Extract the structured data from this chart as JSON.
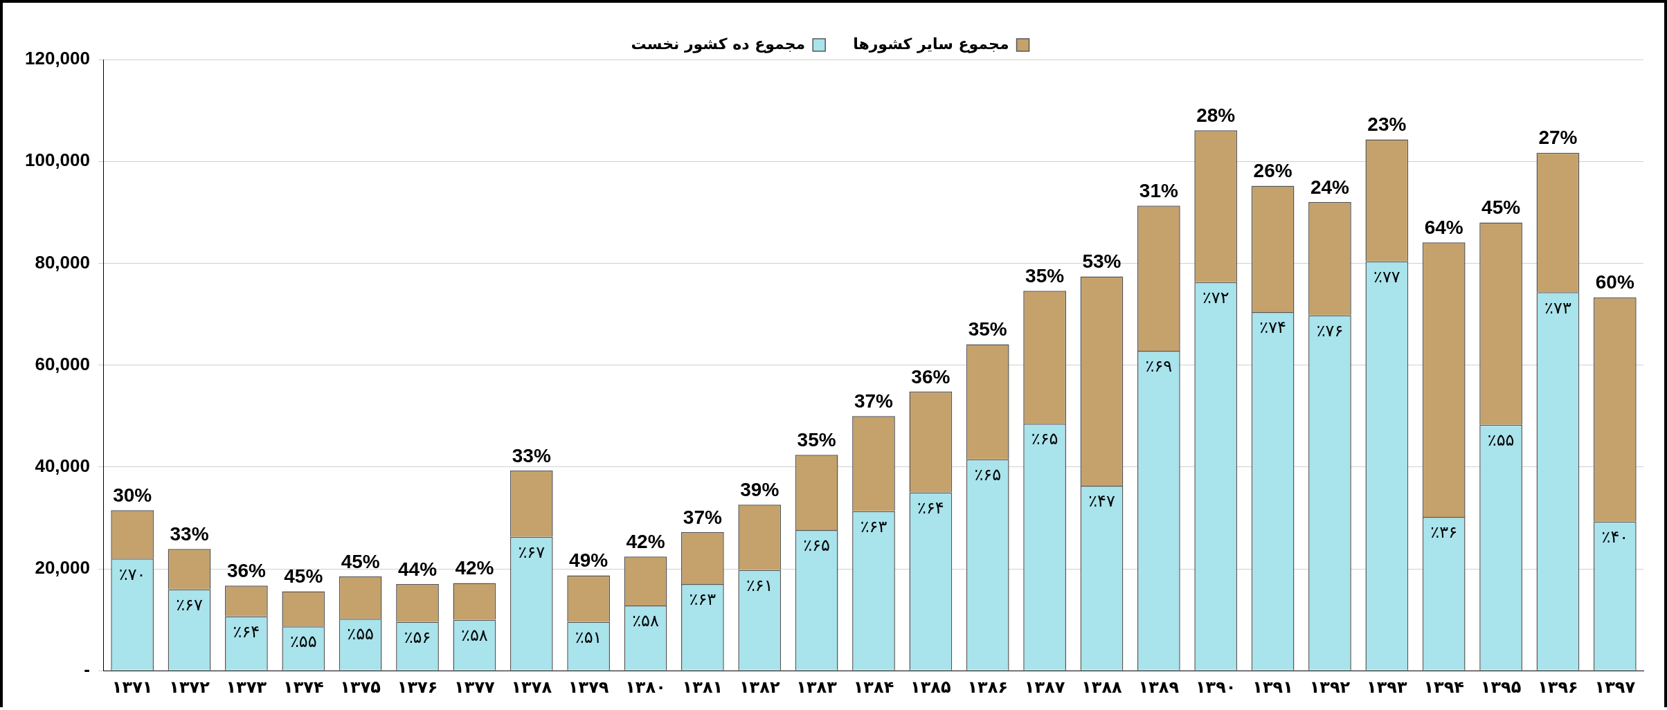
{
  "chart_data": {
    "type": "bar",
    "stacked": true,
    "legend": "top",
    "grid": "y",
    "categories": [
      "۱۳۷۱",
      "۱۳۷۲",
      "۱۳۷۳",
      "۱۳۷۴",
      "۱۳۷۵",
      "۱۳۷۶",
      "۱۳۷۷",
      "۱۳۷۸",
      "۱۳۷۹",
      "۱۳۸۰",
      "۱۳۸۱",
      "۱۳۸۲",
      "۱۳۸۳",
      "۱۳۸۴",
      "۱۳۸۵",
      "۱۳۸۶",
      "۱۳۸۷",
      "۱۳۸۸",
      "۱۳۸۹",
      "۱۳۹۰",
      "۱۳۹۱",
      "۱۳۹۲",
      "۱۳۹۳",
      "۱۳۹۴",
      "۱۳۹۵",
      "۱۳۹۶",
      "۱۳۹۷"
    ],
    "ylim": [
      0,
      120000
    ],
    "yticks": [
      {
        "value": 0,
        "label": "-"
      },
      {
        "value": 20000,
        "label": "20,000"
      },
      {
        "value": 40000,
        "label": "40,000"
      },
      {
        "value": 60000,
        "label": "60,000"
      },
      {
        "value": 80000,
        "label": "80,000"
      },
      {
        "value": 100000,
        "label": "100,000"
      },
      {
        "value": 120000,
        "label": "120,000"
      }
    ],
    "series": [
      {
        "name": "مجموع ده کشور نخست",
        "color": "#a9e3ec",
        "values": [
          22000,
          16000,
          10700,
          8700,
          10200,
          9600,
          10000,
          26300,
          9600,
          12800,
          17000,
          19800,
          27600,
          31300,
          35000,
          41500,
          48500,
          36300,
          62800,
          76300,
          70400,
          69800,
          80400,
          30200,
          48300,
          74300,
          29300
        ]
      },
      {
        "name": "مجموع سایر کشورها",
        "color": "#c5a26c",
        "values": [
          9500,
          7900,
          6000,
          6900,
          8300,
          7400,
          7200,
          13000,
          9100,
          9600,
          10200,
          12800,
          14800,
          18700,
          19800,
          22600,
          26100,
          41100,
          28500,
          29800,
          24800,
          22200,
          23900,
          53900,
          39700,
          27400,
          44000
        ]
      }
    ],
    "annotations": [
      {
        "text": "٪۷۰",
        "x": "۱۳۷۱",
        "y": 22000
      },
      {
        "text": "٪۶۷",
        "x": "۱۳۷۲",
        "y": 16000
      },
      {
        "text": "٪۶۴",
        "x": "۱۳۷۳",
        "y": 10700
      },
      {
        "text": "٪۵۵",
        "x": "۱۳۷۴",
        "y": 8700
      },
      {
        "text": "٪۵۵",
        "x": "۱۳۷۵",
        "y": 10200
      },
      {
        "text": "٪۵۶",
        "x": "۱۳۷۶",
        "y": 9600
      },
      {
        "text": "٪۵۸",
        "x": "۱۳۷۷",
        "y": 10000
      },
      {
        "text": "٪۶۷",
        "x": "۱۳۷۸",
        "y": 26300
      },
      {
        "text": "٪۵۱",
        "x": "۱۳۷۹",
        "y": 9600
      },
      {
        "text": "٪۵۸",
        "x": "۱۳۸۰",
        "y": 12800
      },
      {
        "text": "٪۶۳",
        "x": "۱۳۸۱",
        "y": 17000
      },
      {
        "text": "٪۶۱",
        "x": "۱۳۸۲",
        "y": 19800
      },
      {
        "text": "٪۶۵",
        "x": "۱۳۸۳",
        "y": 27600
      },
      {
        "text": "٪۶۳",
        "x": "۱۳۸۴",
        "y": 31300
      },
      {
        "text": "٪۶۴",
        "x": "۱۳۸۵",
        "y": 35000
      },
      {
        "text": "٪۶۵",
        "x": "۱۳۸۶",
        "y": 41500
      },
      {
        "text": "٪۶۵",
        "x": "۱۳۸۷",
        "y": 48500
      },
      {
        "text": "٪۴۷",
        "x": "۱۳۸۸",
        "y": 36300
      },
      {
        "text": "٪۶۹",
        "x": "۱۳۸۹",
        "y": 62800
      },
      {
        "text": "٪۷۲",
        "x": "۱۳۹۰",
        "y": 76300
      },
      {
        "text": "٪۷۴",
        "x": "۱۳۹۱",
        "y": 70400
      },
      {
        "text": "٪۷۶",
        "x": "۱۳۹۲",
        "y": 69800
      },
      {
        "text": "٪۷۷",
        "x": "۱۳۹۳",
        "y": 80400
      },
      {
        "text": "٪۳۶",
        "x": "۱۳۹۴",
        "y": 30200
      },
      {
        "text": "٪۵۵",
        "x": "۱۳۹۵",
        "y": 48300
      },
      {
        "text": "٪۷۳",
        "x": "۱۳۹۶",
        "y": 74300
      },
      {
        "text": "٪۴۰",
        "x": "۱۳۹۷",
        "y": 29300
      },
      {
        "text": "30%",
        "x": "۱۳۷۱",
        "y": 31500
      },
      {
        "text": "33%",
        "x": "۱۳۷۲",
        "y": 23900
      },
      {
        "text": "36%",
        "x": "۱۳۷۳",
        "y": 16700
      },
      {
        "text": "45%",
        "x": "۱۳۷۴",
        "y": 15600
      },
      {
        "text": "45%",
        "x": "۱۳۷۵",
        "y": 18500
      },
      {
        "text": "44%",
        "x": "۱۳۷۶",
        "y": 17000
      },
      {
        "text": "42%",
        "x": "۱۳۷۷",
        "y": 17200
      },
      {
        "text": "33%",
        "x": "۱۳۷۸",
        "y": 39300
      },
      {
        "text": "49%",
        "x": "۱۳۷۹",
        "y": 18700
      },
      {
        "text": "42%",
        "x": "۱۳۸۰",
        "y": 22400
      },
      {
        "text": "37%",
        "x": "۱۳۸۱",
        "y": 27200
      },
      {
        "text": "39%",
        "x": "۱۳۸۲",
        "y": 32600
      },
      {
        "text": "35%",
        "x": "۱۳۸۳",
        "y": 42400
      },
      {
        "text": "37%",
        "x": "۱۳۸۴",
        "y": 50000
      },
      {
        "text": "36%",
        "x": "۱۳۸۵",
        "y": 54800
      },
      {
        "text": "35%",
        "x": "۱۳۸۶",
        "y": 64100
      },
      {
        "text": "35%",
        "x": "۱۳۸۷",
        "y": 74600
      },
      {
        "text": "53%",
        "x": "۱۳۸۸",
        "y": 77400
      },
      {
        "text": "31%",
        "x": "۱۳۸۹",
        "y": 91300
      },
      {
        "text": "28%",
        "x": "۱۳۹۰",
        "y": 106100
      },
      {
        "text": "26%",
        "x": "۱۳۹۱",
        "y": 95200
      },
      {
        "text": "24%",
        "x": "۱۳۹۲",
        "y": 92000
      },
      {
        "text": "23%",
        "x": "۱۳۹۳",
        "y": 104300
      },
      {
        "text": "64%",
        "x": "۱۳۹۴",
        "y": 84100
      },
      {
        "text": "45%",
        "x": "۱۳۹۵",
        "y": 88000
      },
      {
        "text": "27%",
        "x": "۱۳۹۶",
        "y": 101700
      },
      {
        "text": "60%",
        "x": "۱۳۹۷",
        "y": 73300
      }
    ]
  }
}
